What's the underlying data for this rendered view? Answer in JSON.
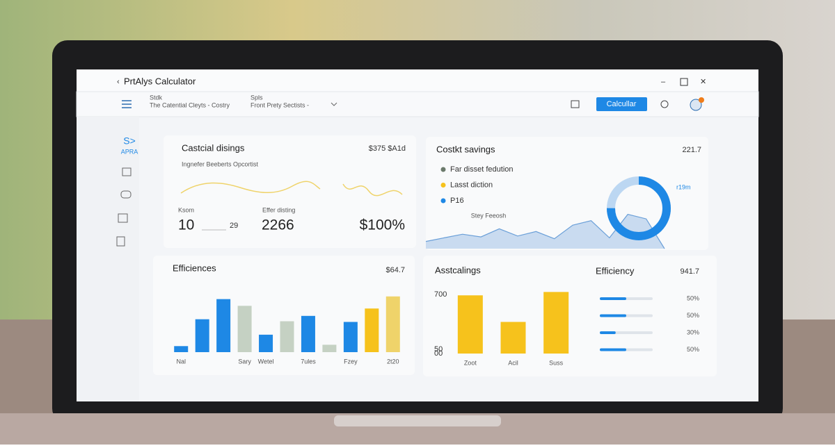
{
  "window": {
    "title": "PrtAlys Calculator"
  },
  "toolbar": {
    "fields": [
      {
        "label": "Stdk",
        "value": "The Catential Cleyts - Costry"
      },
      {
        "label": "Spls",
        "value": "Front Prety Sectists -"
      }
    ],
    "button": "Calcullar"
  },
  "sidebar": {
    "logo_mark": "S>",
    "logo": "APRA"
  },
  "summary": {
    "title": "Castcial disings",
    "headline": "$375 $A1d",
    "subtitle": "Ingnefer Beeberts Opcortist",
    "metrics": [
      {
        "label": "Ksom",
        "value": "10",
        "extra": "29"
      },
      {
        "label": "Effer disting",
        "value": "2266"
      },
      {
        "value": "$100%"
      }
    ]
  },
  "chart_data": [
    {
      "type": "bar",
      "title": "Efficiences",
      "headline": "$64.7",
      "categories": [
        "Nal",
        null,
        null,
        "Sary",
        "Wetel",
        null,
        "7ules",
        null,
        "Fzey",
        null,
        "2t20"
      ],
      "values": [
        9,
        49,
        79,
        69,
        26,
        46,
        54,
        11,
        45,
        65,
        83
      ],
      "colors": [
        "#1e88e5",
        "#1e88e5",
        "#1e88e5",
        "#c5d1c3",
        "#1e88e5",
        "#c5d1c3",
        "#1e88e5",
        "#c5d1c3",
        "#1e88e5",
        "#f6c21c",
        "#efd36a"
      ],
      "ylim": [
        0,
        90
      ]
    },
    {
      "type": "bar",
      "title": "Asstcalings",
      "categories": [
        "Zoot",
        "Acil",
        "Suss"
      ],
      "values": [
        690,
        375,
        730
      ],
      "color": "#f6c21c",
      "ylim": [
        0,
        750
      ],
      "yticks": [
        {
          "value": 0,
          "label": "00"
        },
        50,
        700
      ]
    },
    {
      "type": "area",
      "title": "Costkt savings",
      "headline": "221.7",
      "annotation": "Stey Feeosh",
      "legend_items": [
        {
          "name": "Far disset fedution",
          "color": "#6b7a6b"
        },
        {
          "name": "Lasst diction",
          "color": "#f6c21c"
        },
        {
          "name": "P16",
          "color": "#1e88e5"
        }
      ],
      "values": [
        8,
        12,
        16,
        13,
        22,
        14,
        19,
        11,
        26,
        31,
        12,
        38,
        33,
        0
      ],
      "color": "#6a9fd8",
      "ylim": [
        0,
        60
      ]
    },
    {
      "type": "donut",
      "label": "r19m",
      "values": [
        75
      ],
      "color": "#1e88e5"
    },
    {
      "type": "progress",
      "title": "Efficiency",
      "headline": "941.7",
      "values": [
        50,
        50,
        30,
        50
      ],
      "value_labels": [
        "50%",
        "50%",
        "30%",
        "50%"
      ],
      "color": "#1e88e5"
    }
  ]
}
